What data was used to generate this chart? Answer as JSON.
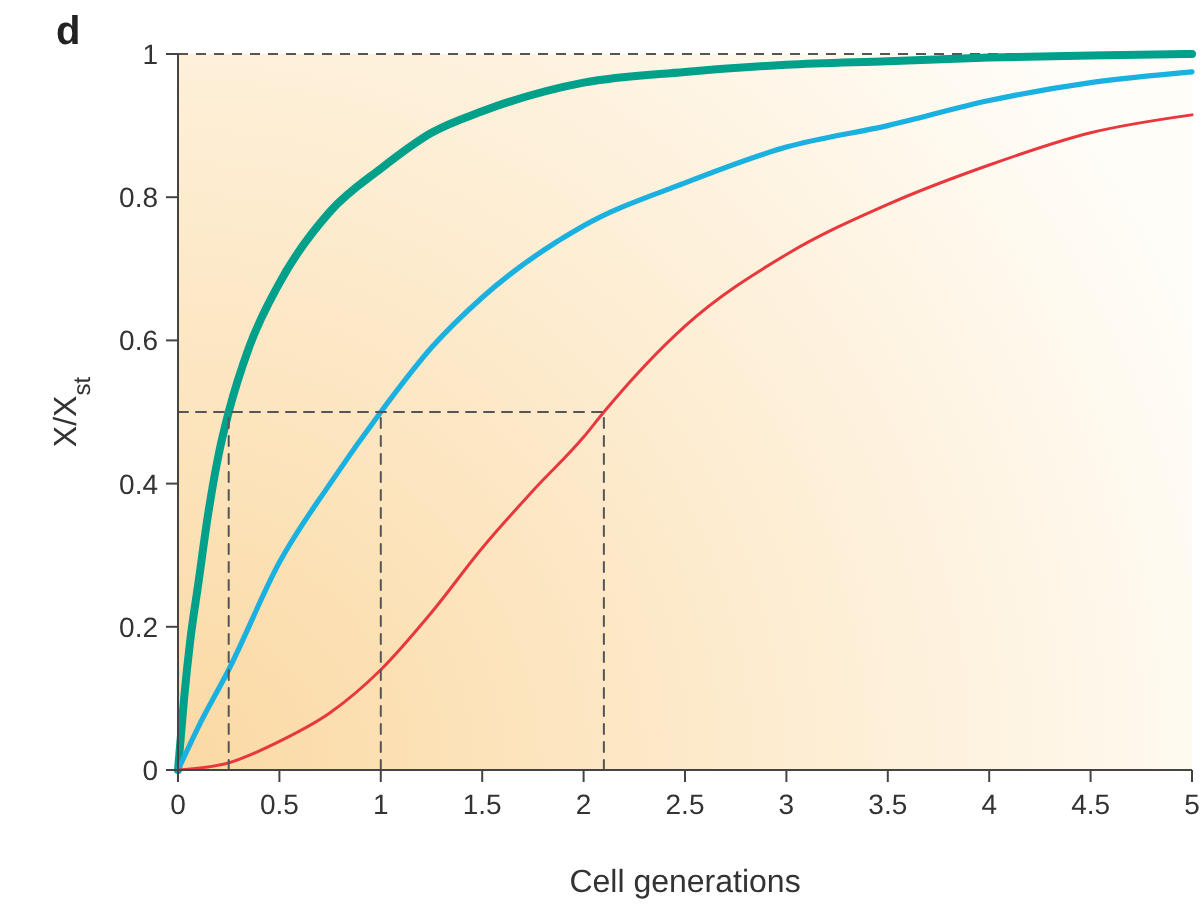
{
  "chart_data": {
    "type": "line",
    "xlabel": "Cell generations",
    "ylabel": "X/X$_{st}$",
    "annotations": [
      "d"
    ],
    "xlim": [
      0,
      5
    ],
    "xticks": [
      0,
      0.5,
      1,
      1.5,
      2,
      2.5,
      3,
      3.5,
      4,
      4.5,
      5
    ],
    "ylim": [
      0,
      1
    ],
    "yticks": [
      0,
      0.2,
      0.4,
      0.6,
      0.8,
      1
    ],
    "grid": false,
    "ref_lines": [
      {
        "axis": "y",
        "value": 1,
        "color": "#555555",
        "line_style": "dashed"
      }
    ],
    "series": [
      {
        "color": "#00a08a",
        "x": [
          0,
          0.03,
          0.06,
          0.1,
          0.15,
          0.2,
          0.25,
          0.35,
          0.5,
          0.75,
          1,
          1.25,
          1.5,
          2,
          2.5,
          3,
          3.5,
          4,
          4.5,
          5
        ],
        "values": [
          0,
          0.1,
          0.18,
          0.26,
          0.36,
          0.44,
          0.5,
          0.59,
          0.68,
          0.78,
          0.84,
          0.89,
          0.92,
          0.96,
          0.975,
          0.985,
          0.99,
          0.995,
          0.998,
          1
        ]
      },
      {
        "color": "#1ab0e0",
        "x": [
          0,
          0.1,
          0.25,
          0.5,
          0.75,
          1,
          1.25,
          1.5,
          2,
          2.5,
          3,
          3.5,
          4,
          4.5,
          5
        ],
        "values": [
          0,
          0.06,
          0.14,
          0.29,
          0.4,
          0.5,
          0.59,
          0.66,
          0.76,
          0.82,
          0.87,
          0.9,
          0.935,
          0.96,
          0.975
        ]
      },
      {
        "color": "#e8383d",
        "x": [
          0,
          0.25,
          0.5,
          0.75,
          1,
          1.25,
          1.5,
          1.75,
          2,
          2.1,
          2.5,
          3,
          3.5,
          4,
          4.5,
          5
        ],
        "values": [
          0,
          0.01,
          0.04,
          0.08,
          0.14,
          0.22,
          0.31,
          0.39,
          0.465,
          0.5,
          0.62,
          0.72,
          0.79,
          0.845,
          0.89,
          0.915
        ]
      },
      {
        "color": "#555555",
        "line_style": "dashed",
        "x": [
          0,
          2.1
        ],
        "values": [
          0.5,
          0.5
        ]
      },
      {
        "color": "#555555",
        "line_style": "dashed",
        "x": [
          0.25,
          0.25
        ],
        "values": [
          0,
          0.5
        ]
      },
      {
        "color": "#555555",
        "line_style": "dashed",
        "x": [
          1,
          1
        ],
        "values": [
          0,
          0.5
        ]
      },
      {
        "color": "#555555",
        "line_style": "dashed",
        "x": [
          2.1,
          2.1
        ],
        "values": [
          0,
          0.5
        ]
      }
    ]
  }
}
